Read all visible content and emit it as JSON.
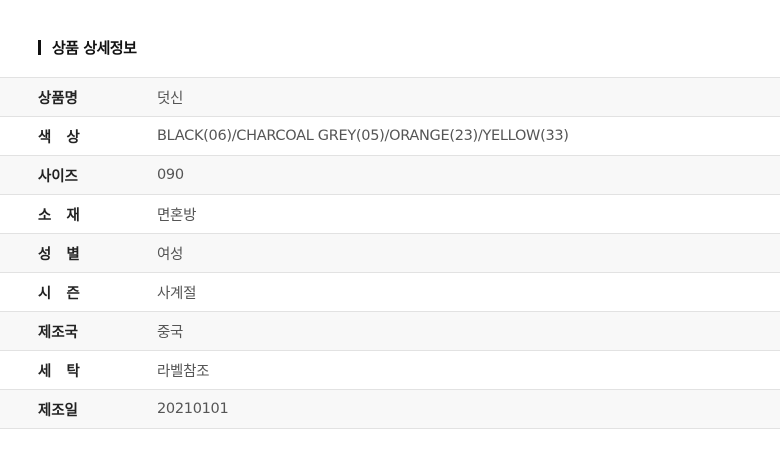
{
  "section_title": "상품 상세정보",
  "rows": [
    {
      "label": "상품명",
      "value": "덧신"
    },
    {
      "label": "색   상",
      "value": "BLACK(06)/CHARCOAL GREY(05)/ORANGE(23)/YELLOW(33)"
    },
    {
      "label": "사이즈",
      "value": "090"
    },
    {
      "label": "소   재",
      "value": "면혼방"
    },
    {
      "label": "성   별",
      "value": "여성"
    },
    {
      "label": "시   즌",
      "value": "사계절"
    },
    {
      "label": "제조국",
      "value": "중국"
    },
    {
      "label": "세   탁",
      "value": "라벨참조"
    },
    {
      "label": "제조일",
      "value": "20210101"
    }
  ]
}
